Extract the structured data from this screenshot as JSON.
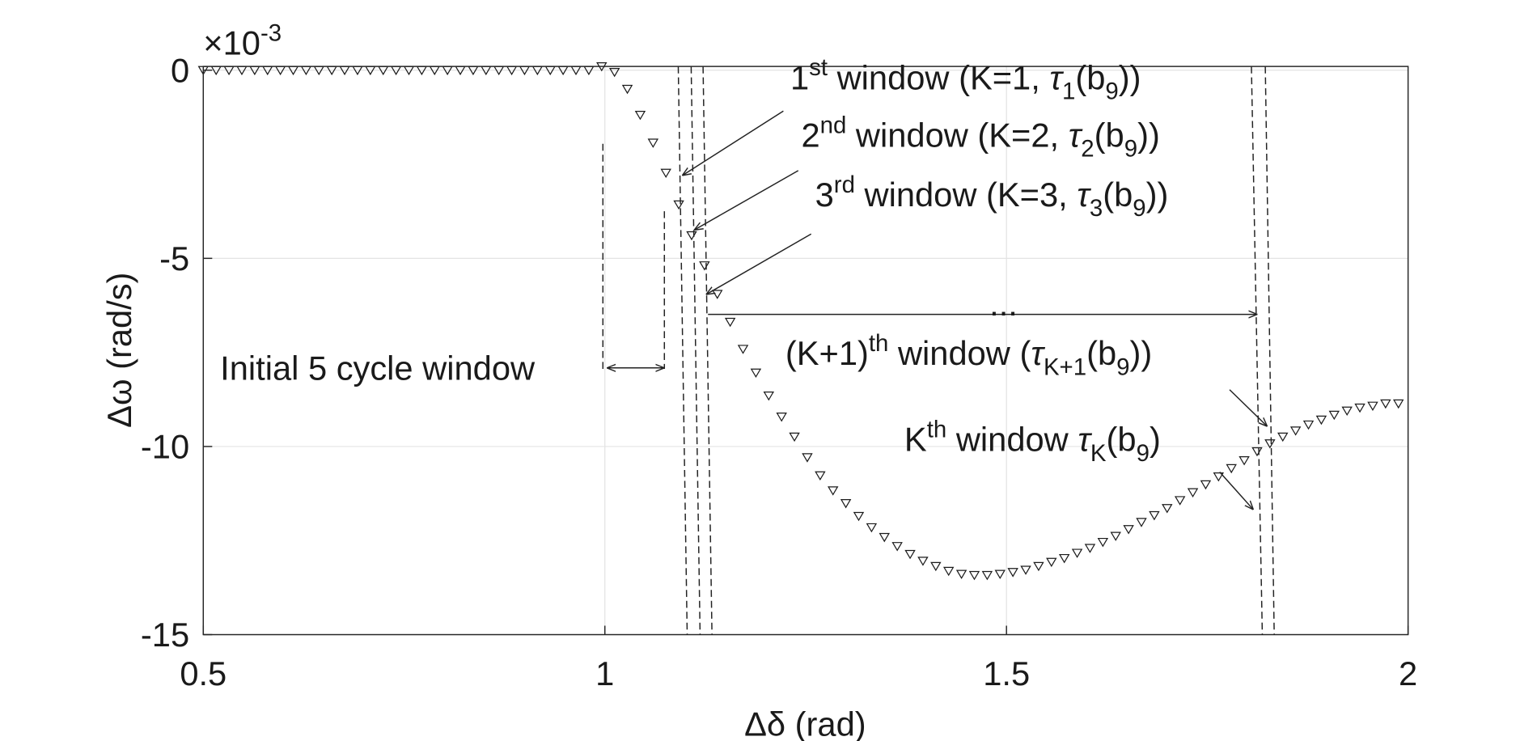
{
  "chart_data": {
    "type": "scatter",
    "x_label": "Δδ (rad)",
    "y_label": "Δω (rad/s)",
    "y_multiplier": [
      "×10",
      "-3"
    ],
    "xlim": [
      0.5,
      2
    ],
    "ylim": [
      -15,
      0.1
    ],
    "xticks": [
      0.5,
      1,
      1.5,
      2
    ],
    "yticks": [
      0,
      -5,
      -10,
      -15
    ],
    "grid": true,
    "marker": "triangle-down",
    "color": "#1a1a1a",
    "x": [
      0.5,
      0.516,
      0.532,
      0.548,
      0.564,
      0.58,
      0.596,
      0.612,
      0.628,
      0.644,
      0.66,
      0.676,
      0.692,
      0.708,
      0.724,
      0.74,
      0.756,
      0.772,
      0.788,
      0.804,
      0.82,
      0.836,
      0.852,
      0.868,
      0.884,
      0.9,
      0.916,
      0.932,
      0.948,
      0.964,
      0.98,
      0.996,
      1.012,
      1.028,
      1.044,
      1.06,
      1.076,
      1.092,
      1.108,
      1.124,
      1.14,
      1.156,
      1.172,
      1.188,
      1.204,
      1.22,
      1.236,
      1.252,
      1.268,
      1.284,
      1.3,
      1.316,
      1.332,
      1.348,
      1.364,
      1.38,
      1.396,
      1.412,
      1.428,
      1.444,
      1.46,
      1.476,
      1.492,
      1.508,
      1.524,
      1.54,
      1.556,
      1.572,
      1.588,
      1.604,
      1.62,
      1.636,
      1.652,
      1.668,
      1.684,
      1.7,
      1.716,
      1.732,
      1.748,
      1.764,
      1.78,
      1.796,
      1.812,
      1.828,
      1.844,
      1.86,
      1.876,
      1.892,
      1.908,
      1.924,
      1.94,
      1.956,
      1.972,
      1.988
    ],
    "values": [
      0,
      0,
      0,
      0,
      0,
      0,
      0,
      0,
      0,
      0,
      0,
      0,
      0,
      0,
      0,
      0,
      0,
      0,
      0,
      0,
      0,
      0,
      0,
      0,
      0,
      0,
      0,
      0,
      0,
      0,
      0,
      0.1,
      -0.05,
      -0.5,
      -1.19,
      -1.93,
      -2.73,
      -3.57,
      -4.39,
      -5.19,
      -5.95,
      -6.69,
      -7.41,
      -8.04,
      -8.65,
      -9.21,
      -9.74,
      -10.29,
      -10.77,
      -11.17,
      -11.51,
      -11.85,
      -12.15,
      -12.41,
      -12.65,
      -12.86,
      -13.04,
      -13.18,
      -13.31,
      -13.39,
      -13.42,
      -13.42,
      -13.39,
      -13.34,
      -13.28,
      -13.18,
      -13.07,
      -12.97,
      -12.83,
      -12.7,
      -12.54,
      -12.38,
      -12.2,
      -12.01,
      -11.83,
      -11.64,
      -11.43,
      -11.22,
      -11.01,
      -10.8,
      -10.58,
      -10.37,
      -10.13,
      -9.92,
      -9.74,
      -9.58,
      -9.42,
      -9.29,
      -9.16,
      -9.05,
      -8.97,
      -8.92,
      -8.86,
      -8.86
    ],
    "annotations": [
      [
        "1",
        "st",
        " window (K=1, ",
        "τ",
        "1",
        "(b",
        "9",
        "))"
      ],
      [
        "2",
        "nd",
        " window (K=2, ",
        "τ",
        "2",
        "(b",
        "9",
        "))"
      ],
      [
        "3",
        "rd",
        " window (K=3, ",
        "τ",
        "3",
        "(b",
        "9",
        "))"
      ],
      [
        "..."
      ],
      [
        "(K+1)",
        "th",
        " window (",
        "τ",
        "K+1",
        "(b",
        "9",
        "))"
      ],
      [
        "K",
        "th",
        " window ",
        "τ",
        "K",
        "(b",
        "9",
        ")"
      ],
      [
        "Initial 5 cycle window"
      ]
    ]
  }
}
